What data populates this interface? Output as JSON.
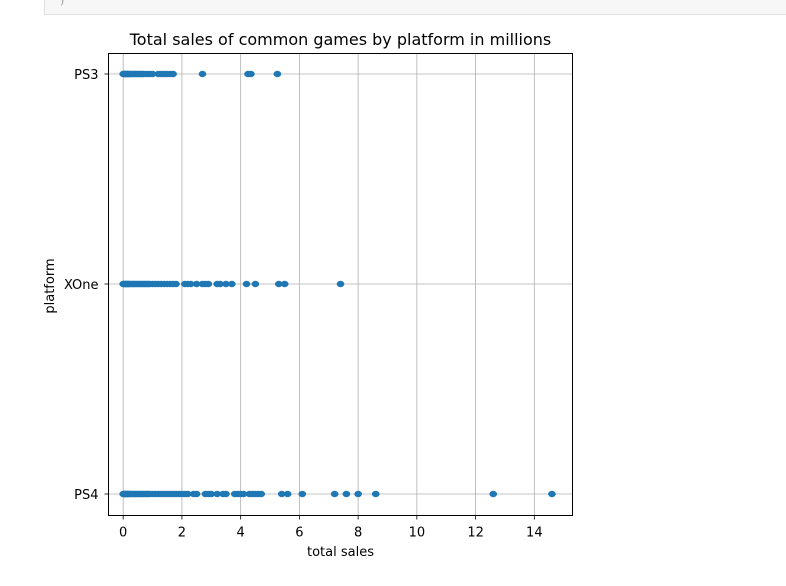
{
  "cell": {
    "glyph": ")"
  },
  "chart_data": {
    "type": "scatter",
    "title": "Total sales of common games by platform in millions",
    "xlabel": "total sales",
    "ylabel": "platform",
    "xlim": [
      -0.5,
      15.3
    ],
    "xticks": [
      0,
      2,
      4,
      6,
      8,
      10,
      12,
      14
    ],
    "categories": [
      "PS4",
      "XOne",
      "PS3"
    ],
    "grid": true,
    "color": "#1f77b4",
    "series": [
      {
        "category": "PS3",
        "x": [
          0.0,
          0.02,
          0.05,
          0.08,
          0.1,
          0.12,
          0.15,
          0.18,
          0.2,
          0.25,
          0.3,
          0.35,
          0.4,
          0.45,
          0.5,
          0.55,
          0.6,
          0.65,
          0.7,
          0.8,
          0.9,
          1.0,
          1.2,
          1.3,
          1.4,
          1.5,
          1.6,
          1.7,
          2.7,
          4.25,
          4.35,
          5.25
        ]
      },
      {
        "category": "XOne",
        "x": [
          0.0,
          0.02,
          0.05,
          0.08,
          0.1,
          0.12,
          0.15,
          0.18,
          0.2,
          0.25,
          0.3,
          0.35,
          0.4,
          0.45,
          0.5,
          0.55,
          0.6,
          0.65,
          0.7,
          0.75,
          0.8,
          0.85,
          0.9,
          1.0,
          1.1,
          1.2,
          1.3,
          1.4,
          1.5,
          1.6,
          1.7,
          1.8,
          2.1,
          2.2,
          2.3,
          2.5,
          2.7,
          2.8,
          2.9,
          3.2,
          3.3,
          3.5,
          3.7,
          4.2,
          4.5,
          5.3,
          5.5,
          7.4
        ]
      },
      {
        "category": "PS4",
        "x": [
          0.0,
          0.02,
          0.05,
          0.08,
          0.1,
          0.12,
          0.15,
          0.18,
          0.2,
          0.25,
          0.3,
          0.35,
          0.4,
          0.45,
          0.5,
          0.55,
          0.6,
          0.65,
          0.7,
          0.75,
          0.8,
          0.85,
          0.9,
          1.0,
          1.1,
          1.2,
          1.3,
          1.4,
          1.5,
          1.6,
          1.7,
          1.8,
          1.9,
          2.0,
          2.1,
          2.2,
          2.4,
          2.5,
          2.8,
          2.9,
          3.0,
          3.2,
          3.4,
          3.5,
          3.8,
          3.9,
          4.0,
          4.1,
          4.3,
          4.4,
          4.5,
          4.6,
          4.7,
          5.4,
          5.6,
          6.1,
          7.2,
          7.6,
          8.0,
          8.6,
          12.6,
          14.6
        ]
      }
    ]
  }
}
